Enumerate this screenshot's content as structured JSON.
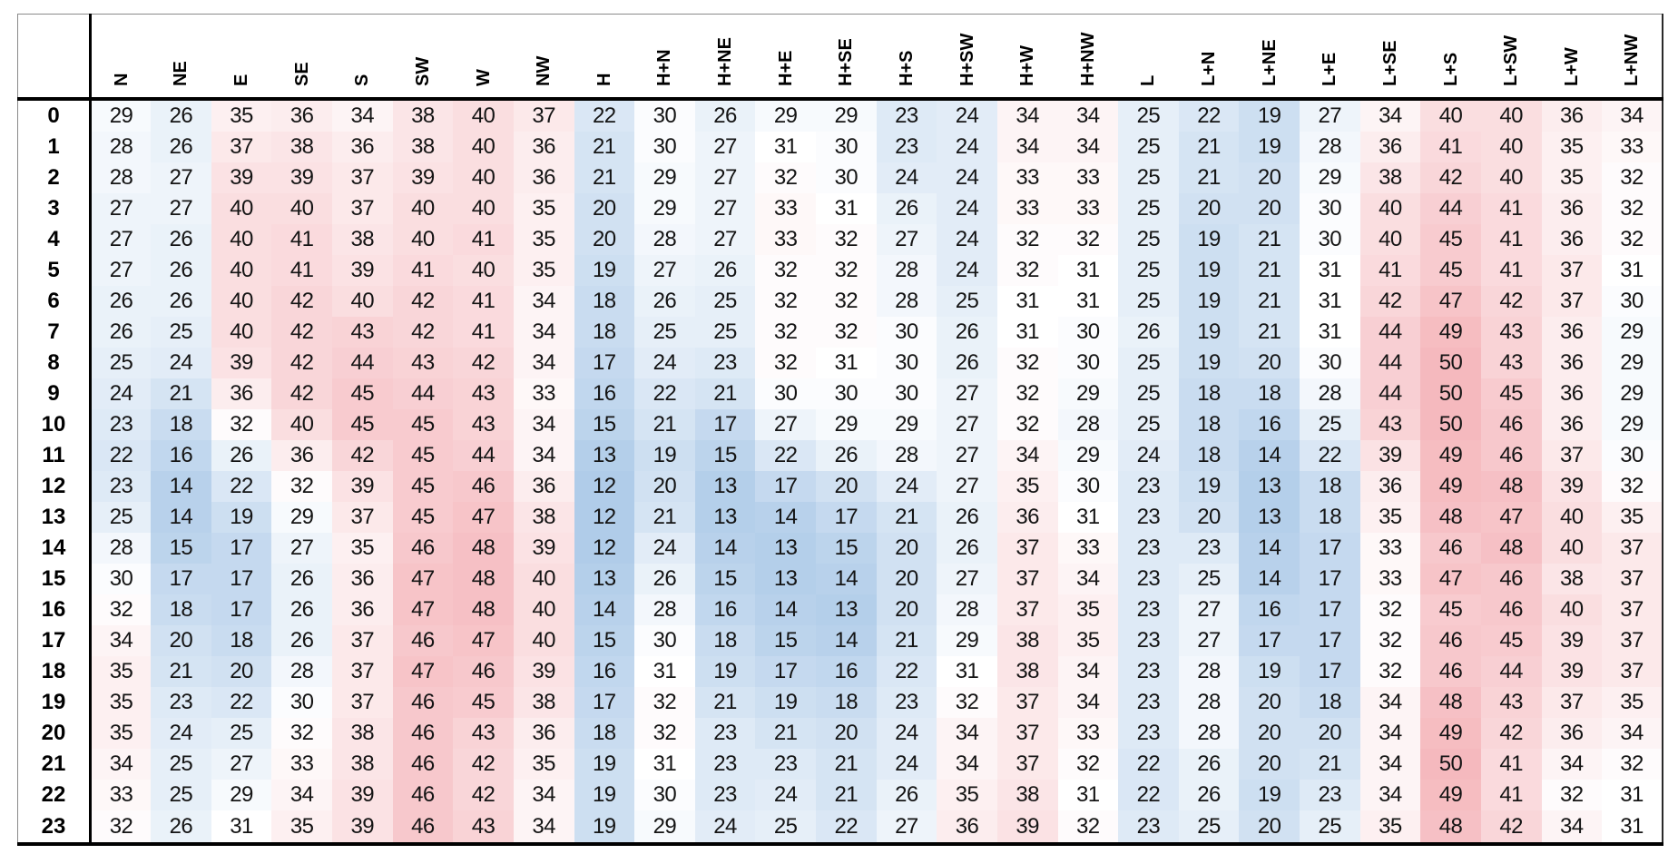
{
  "chart_data": {
    "type": "heatmap",
    "title": "",
    "xlabel": "",
    "ylabel": "",
    "columns": [
      "N",
      "NE",
      "E",
      "SE",
      "S",
      "SW",
      "W",
      "NW",
      "H",
      "H+N",
      "H+NE",
      "H+E",
      "H+SE",
      "H+S",
      "H+SW",
      "H+W",
      "H+NW",
      "L",
      "L+N",
      "L+NE",
      "L+E",
      "L+SE",
      "L+S",
      "L+SW",
      "L+W",
      "L+NW"
    ],
    "row_labels": [
      "0",
      "1",
      "2",
      "3",
      "4",
      "5",
      "6",
      "7",
      "8",
      "9",
      "10",
      "11",
      "12",
      "13",
      "14",
      "15",
      "16",
      "17",
      "18",
      "19",
      "20",
      "21",
      "22",
      "23"
    ],
    "values": [
      [
        29,
        26,
        35,
        36,
        34,
        38,
        40,
        37,
        22,
        30,
        26,
        29,
        29,
        23,
        24,
        34,
        34,
        25,
        22,
        19,
        27,
        34,
        40,
        40,
        36,
        34
      ],
      [
        28,
        26,
        37,
        38,
        36,
        38,
        40,
        36,
        21,
        30,
        27,
        31,
        30,
        23,
        24,
        34,
        34,
        25,
        21,
        19,
        28,
        36,
        41,
        40,
        35,
        33
      ],
      [
        28,
        27,
        39,
        39,
        37,
        39,
        40,
        36,
        21,
        29,
        27,
        32,
        30,
        24,
        24,
        33,
        33,
        25,
        21,
        20,
        29,
        38,
        42,
        40,
        35,
        32
      ],
      [
        27,
        27,
        40,
        40,
        37,
        40,
        40,
        35,
        20,
        29,
        27,
        33,
        31,
        26,
        24,
        33,
        33,
        25,
        20,
        20,
        30,
        40,
        44,
        41,
        36,
        32
      ],
      [
        27,
        26,
        40,
        41,
        38,
        40,
        41,
        35,
        20,
        28,
        27,
        33,
        32,
        27,
        24,
        32,
        32,
        25,
        19,
        21,
        30,
        40,
        45,
        41,
        36,
        32
      ],
      [
        27,
        26,
        40,
        41,
        39,
        41,
        40,
        35,
        19,
        27,
        26,
        32,
        32,
        28,
        24,
        32,
        31,
        25,
        19,
        21,
        31,
        41,
        45,
        41,
        37,
        31
      ],
      [
        26,
        26,
        40,
        42,
        40,
        42,
        41,
        34,
        18,
        26,
        25,
        32,
        32,
        28,
        25,
        31,
        31,
        25,
        19,
        21,
        31,
        42,
        47,
        42,
        37,
        30
      ],
      [
        26,
        25,
        40,
        42,
        43,
        42,
        41,
        34,
        18,
        25,
        25,
        32,
        32,
        30,
        26,
        31,
        30,
        26,
        19,
        21,
        31,
        44,
        49,
        43,
        36,
        29
      ],
      [
        25,
        24,
        39,
        42,
        44,
        43,
        42,
        34,
        17,
        24,
        23,
        32,
        31,
        30,
        26,
        32,
        30,
        25,
        19,
        20,
        30,
        44,
        50,
        43,
        36,
        29
      ],
      [
        24,
        21,
        36,
        42,
        45,
        44,
        43,
        33,
        16,
        22,
        21,
        30,
        30,
        30,
        27,
        32,
        29,
        25,
        18,
        18,
        28,
        44,
        50,
        45,
        36,
        29
      ],
      [
        23,
        18,
        32,
        40,
        45,
        45,
        43,
        34,
        15,
        21,
        17,
        27,
        29,
        29,
        27,
        32,
        28,
        25,
        18,
        16,
        25,
        43,
        50,
        46,
        36,
        29
      ],
      [
        22,
        16,
        26,
        36,
        42,
        45,
        44,
        34,
        13,
        19,
        15,
        22,
        26,
        28,
        27,
        34,
        29,
        24,
        18,
        14,
        22,
        39,
        49,
        46,
        37,
        30
      ],
      [
        23,
        14,
        22,
        32,
        39,
        45,
        46,
        36,
        12,
        20,
        13,
        17,
        20,
        24,
        27,
        35,
        30,
        23,
        19,
        13,
        18,
        36,
        49,
        48,
        39,
        32
      ],
      [
        25,
        14,
        19,
        29,
        37,
        45,
        47,
        38,
        12,
        21,
        13,
        14,
        17,
        21,
        26,
        36,
        31,
        23,
        20,
        13,
        18,
        35,
        48,
        47,
        40,
        35
      ],
      [
        28,
        15,
        17,
        27,
        35,
        46,
        48,
        39,
        12,
        24,
        14,
        13,
        15,
        20,
        26,
        37,
        33,
        23,
        23,
        14,
        17,
        33,
        46,
        48,
        40,
        37
      ],
      [
        30,
        17,
        17,
        26,
        36,
        47,
        48,
        40,
        13,
        26,
        15,
        13,
        14,
        20,
        27,
        37,
        34,
        23,
        25,
        14,
        17,
        33,
        47,
        46,
        38,
        37
      ],
      [
        32,
        18,
        17,
        26,
        36,
        47,
        48,
        40,
        14,
        28,
        16,
        14,
        13,
        20,
        28,
        37,
        35,
        23,
        27,
        16,
        17,
        32,
        45,
        46,
        40,
        37
      ],
      [
        34,
        20,
        18,
        26,
        37,
        46,
        47,
        40,
        15,
        30,
        18,
        15,
        14,
        21,
        29,
        38,
        35,
        23,
        27,
        17,
        17,
        32,
        46,
        45,
        39,
        37
      ],
      [
        35,
        21,
        20,
        28,
        37,
        47,
        46,
        39,
        16,
        31,
        19,
        17,
        16,
        22,
        31,
        38,
        34,
        23,
        28,
        19,
        17,
        32,
        46,
        44,
        39,
        37
      ],
      [
        35,
        23,
        22,
        30,
        37,
        46,
        45,
        38,
        17,
        32,
        21,
        19,
        18,
        23,
        32,
        37,
        34,
        23,
        28,
        20,
        18,
        34,
        48,
        43,
        37,
        35
      ],
      [
        35,
        24,
        25,
        32,
        38,
        46,
        43,
        36,
        18,
        32,
        23,
        21,
        20,
        24,
        34,
        37,
        33,
        23,
        28,
        20,
        20,
        34,
        49,
        42,
        36,
        34
      ],
      [
        34,
        25,
        27,
        33,
        38,
        46,
        42,
        35,
        19,
        31,
        23,
        23,
        21,
        24,
        34,
        37,
        32,
        22,
        26,
        20,
        21,
        34,
        50,
        41,
        34,
        32
      ],
      [
        33,
        25,
        29,
        34,
        39,
        46,
        42,
        34,
        19,
        30,
        23,
        24,
        21,
        26,
        35,
        38,
        31,
        22,
        26,
        19,
        23,
        34,
        49,
        41,
        32,
        31
      ],
      [
        32,
        26,
        31,
        35,
        39,
        46,
        43,
        34,
        19,
        29,
        24,
        25,
        22,
        27,
        36,
        39,
        32,
        23,
        25,
        20,
        25,
        35,
        48,
        42,
        34,
        31
      ]
    ],
    "color_scale": {
      "min": 12,
      "midpoint": 31,
      "max": 50,
      "low_color": "#B0CCE9",
      "mid_color": "#FFFFFF",
      "high_color": "#F5B9BE"
    },
    "legend_position": "none",
    "grid": false
  }
}
